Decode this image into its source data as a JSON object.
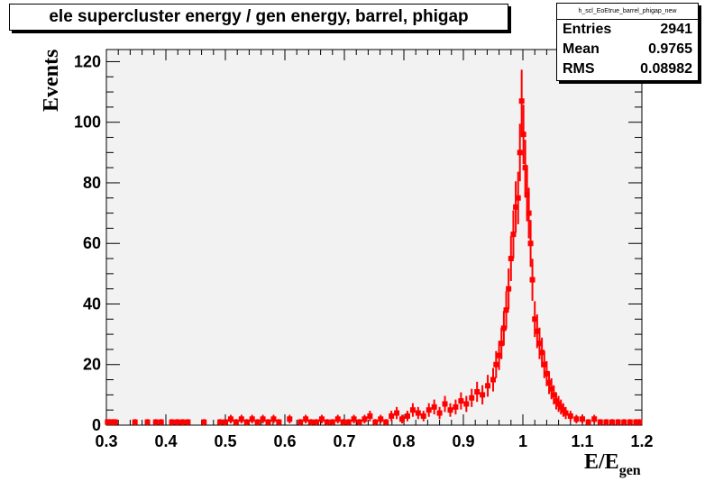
{
  "chart_data": {
    "type": "scatter",
    "title": "ele supercluster energy / gen energy, barrel, phigap",
    "xlabel": "E/E",
    "xlabel_sub": "gen",
    "ylabel": "Events",
    "xlim": [
      0.3,
      1.2
    ],
    "ylim": [
      0,
      124
    ],
    "x_ticks": [
      "0.3",
      "0.4",
      "0.5",
      "0.6",
      "0.7",
      "0.8",
      "0.9",
      "1",
      "1.1",
      "1.2"
    ],
    "y_ticks": [
      "0",
      "20",
      "40",
      "60",
      "80",
      "100",
      "120"
    ],
    "series_color": "#ff0000",
    "frame_fill": "#f2f2f2",
    "bin_width": 0.0045,
    "points": [
      [
        0.302,
        1
      ],
      [
        0.306,
        1
      ],
      [
        0.311,
        1
      ],
      [
        0.315,
        1
      ],
      [
        0.348,
        1
      ],
      [
        0.369,
        1
      ],
      [
        0.383,
        1
      ],
      [
        0.392,
        1
      ],
      [
        0.41,
        1
      ],
      [
        0.419,
        1
      ],
      [
        0.428,
        1
      ],
      [
        0.437,
        1
      ],
      [
        0.464,
        1
      ],
      [
        0.491,
        1
      ],
      [
        0.5,
        1
      ],
      [
        0.509,
        2
      ],
      [
        0.518,
        1
      ],
      [
        0.527,
        2
      ],
      [
        0.536,
        1
      ],
      [
        0.545,
        2
      ],
      [
        0.554,
        1
      ],
      [
        0.563,
        2
      ],
      [
        0.572,
        1
      ],
      [
        0.581,
        2
      ],
      [
        0.59,
        1
      ],
      [
        0.608,
        2
      ],
      [
        0.626,
        1
      ],
      [
        0.635,
        2
      ],
      [
        0.644,
        1
      ],
      [
        0.653,
        1
      ],
      [
        0.662,
        2
      ],
      [
        0.671,
        1
      ],
      [
        0.68,
        1
      ],
      [
        0.689,
        2
      ],
      [
        0.698,
        1
      ],
      [
        0.707,
        1
      ],
      [
        0.716,
        2
      ],
      [
        0.725,
        1
      ],
      [
        0.734,
        2
      ],
      [
        0.743,
        3
      ],
      [
        0.752,
        1
      ],
      [
        0.761,
        2
      ],
      [
        0.77,
        1
      ],
      [
        0.779,
        3
      ],
      [
        0.788,
        4
      ],
      [
        0.797,
        2
      ],
      [
        0.806,
        3
      ],
      [
        0.815,
        5
      ],
      [
        0.824,
        4
      ],
      [
        0.833,
        3
      ],
      [
        0.842,
        5
      ],
      [
        0.851,
        6
      ],
      [
        0.86,
        4
      ],
      [
        0.869,
        7
      ],
      [
        0.878,
        5
      ],
      [
        0.887,
        6
      ],
      [
        0.896,
        8
      ],
      [
        0.905,
        7
      ],
      [
        0.914,
        9
      ],
      [
        0.923,
        11
      ],
      [
        0.932,
        10
      ],
      [
        0.941,
        13
      ],
      [
        0.95,
        15
      ],
      [
        0.955,
        20
      ],
      [
        0.96,
        23
      ],
      [
        0.964,
        27
      ],
      [
        0.968,
        32
      ],
      [
        0.972,
        38
      ],
      [
        0.976,
        45
      ],
      [
        0.98,
        55
      ],
      [
        0.984,
        63
      ],
      [
        0.988,
        72
      ],
      [
        0.992,
        75
      ],
      [
        0.995,
        90
      ],
      [
        0.998,
        107
      ],
      [
        1.001,
        96
      ],
      [
        1.004,
        85
      ],
      [
        1.007,
        76
      ],
      [
        1.01,
        70
      ],
      [
        1.013,
        60
      ],
      [
        1.016,
        48
      ],
      [
        1.02,
        35
      ],
      [
        1.024,
        31
      ],
      [
        1.028,
        27
      ],
      [
        1.032,
        24
      ],
      [
        1.036,
        20
      ],
      [
        1.04,
        17
      ],
      [
        1.044,
        14
      ],
      [
        1.048,
        12
      ],
      [
        1.052,
        10
      ],
      [
        1.056,
        8
      ],
      [
        1.06,
        7
      ],
      [
        1.064,
        6
      ],
      [
        1.068,
        5
      ],
      [
        1.072,
        4
      ],
      [
        1.08,
        3
      ],
      [
        1.09,
        2
      ],
      [
        1.1,
        2
      ],
      [
        1.11,
        1
      ],
      [
        1.12,
        2
      ],
      [
        1.13,
        1
      ],
      [
        1.14,
        1
      ],
      [
        1.15,
        1
      ],
      [
        1.16,
        1
      ],
      [
        1.17,
        1
      ],
      [
        1.18,
        1
      ],
      [
        1.19,
        1
      ],
      [
        1.196,
        1
      ]
    ]
  },
  "stats": {
    "name": "h_scl_EoEtrue_barrel_phigap_new",
    "rows": [
      {
        "label": "Entries",
        "value": "2941"
      },
      {
        "label": "Mean",
        "value": "0.9765"
      },
      {
        "label": "RMS",
        "value": "0.08982"
      }
    ]
  }
}
